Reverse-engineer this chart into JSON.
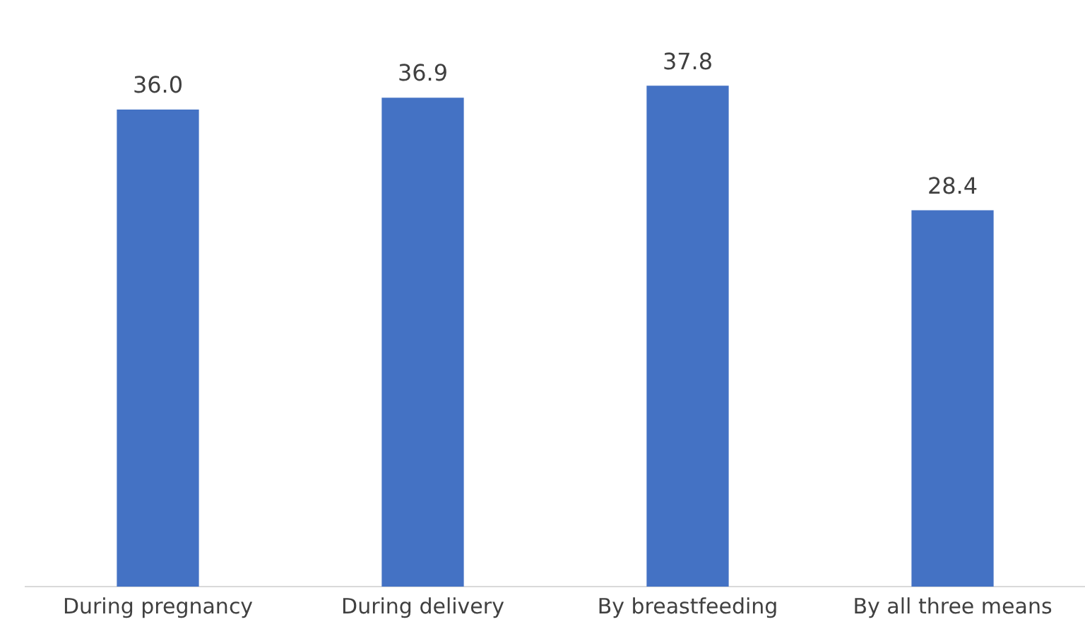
{
  "chart_data": {
    "type": "bar",
    "categories": [
      "During pregnancy",
      "During delivery",
      "By breastfeeding",
      "By all three means"
    ],
    "values": [
      36.0,
      36.9,
      37.8,
      28.4
    ],
    "color": "#4472c4",
    "value_labels": [
      "36.0",
      "36.9",
      "37.8",
      "28.4"
    ]
  }
}
